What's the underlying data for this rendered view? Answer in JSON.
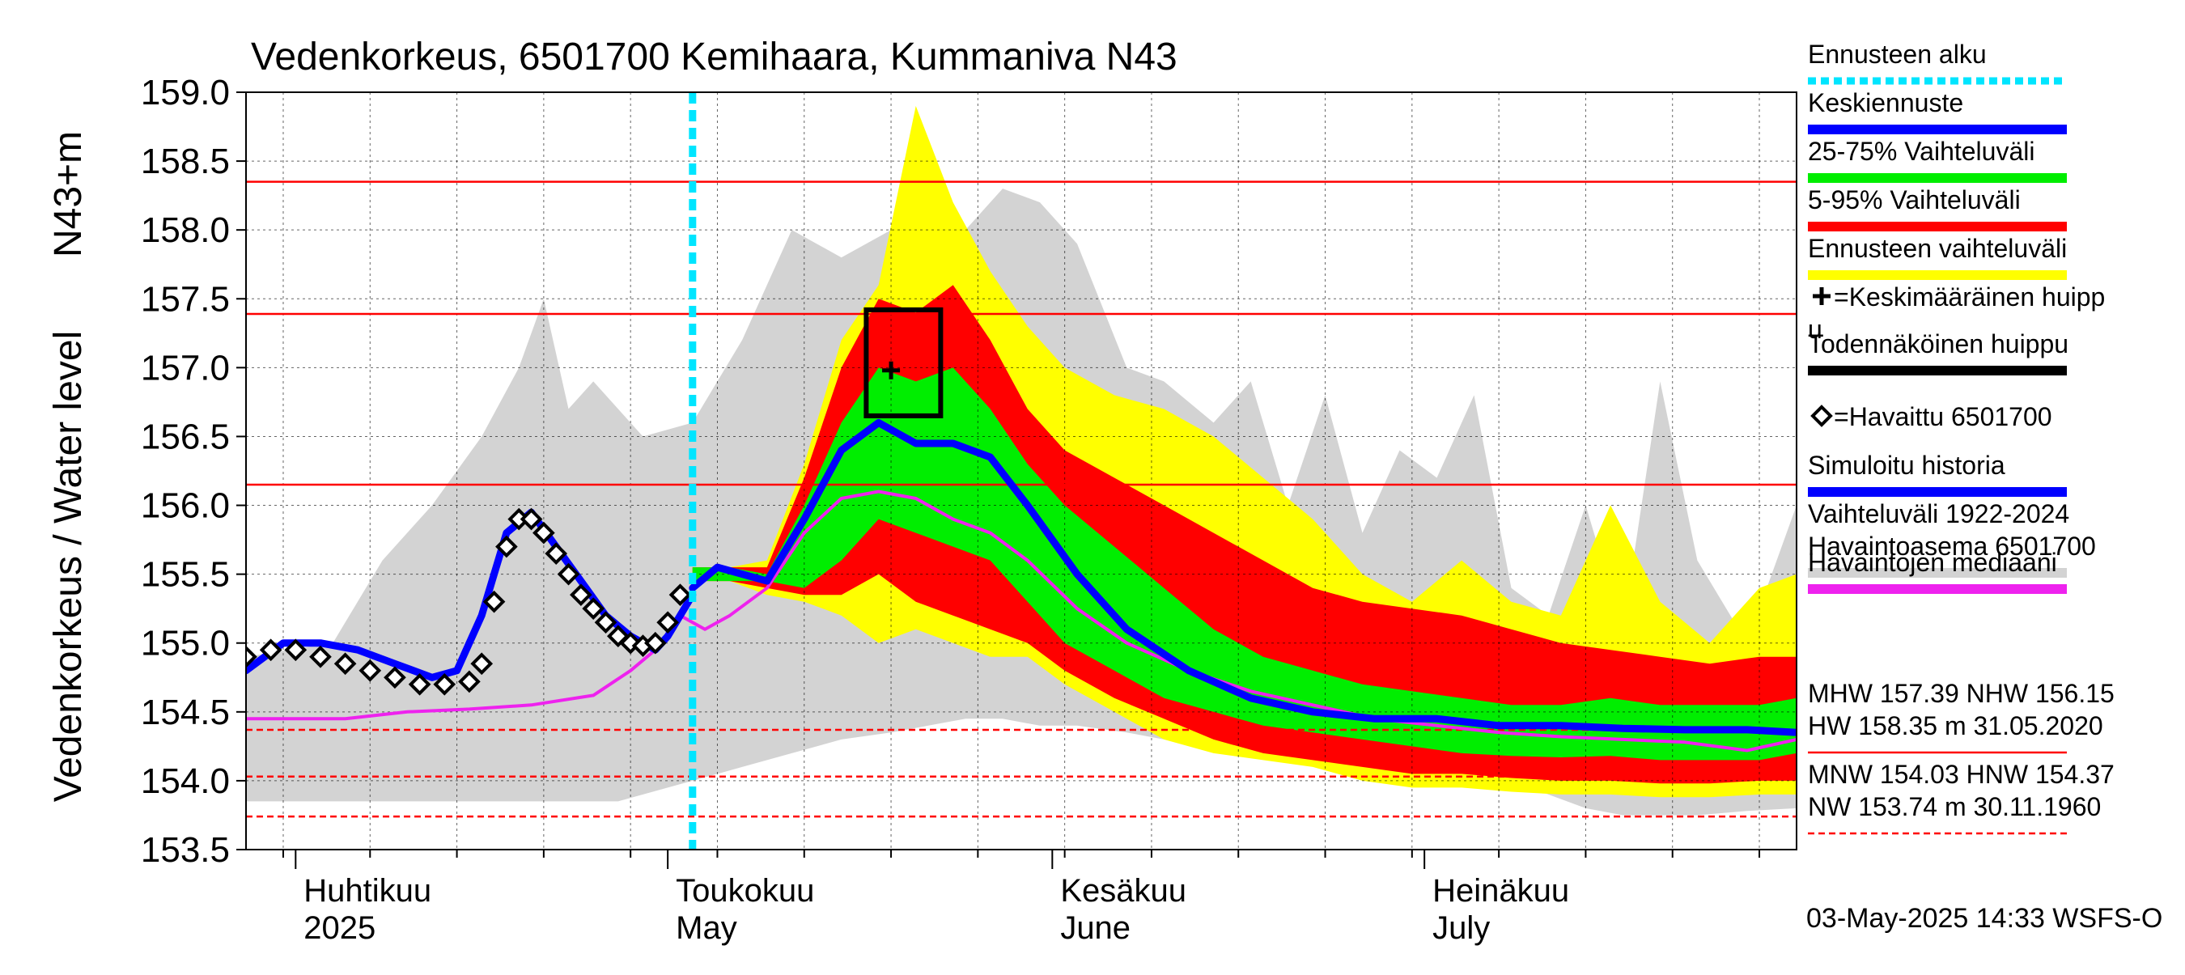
{
  "chart_data": {
    "type": "area",
    "title": "Vedenkorkeus, 6501700 Kemihaara, Kummaniva N43",
    "ylabel": "Vedenkorkeus / Water level",
    "yunit": "N43+m",
    "ylim": [
      153.5,
      159.0
    ],
    "yticks": [
      153.5,
      154.0,
      154.5,
      155.0,
      155.5,
      156.0,
      156.5,
      157.0,
      157.5,
      158.0,
      158.5,
      159.0
    ],
    "ytick_labels": [
      "153.5",
      "154.0",
      "154.5",
      "155.0",
      "155.5",
      "156.0",
      "156.5",
      "157.0",
      "157.5",
      "158.0",
      "158.5",
      "159.0"
    ],
    "xlim": [
      "2025-03-28",
      "2025-07-31"
    ],
    "x_month_labels": [
      {
        "date": "2025-04-01",
        "label": "Huhtikuu",
        "sub": "2025"
      },
      {
        "date": "2025-05-01",
        "label": "Toukokuu",
        "sub": "May"
      },
      {
        "date": "2025-06-01",
        "label": "Kesäkuu",
        "sub": "June"
      },
      {
        "date": "2025-07-01",
        "label": "Heinäkuu",
        "sub": "July"
      }
    ],
    "grid": true,
    "legend_position": "right",
    "forecast_start": "2025-05-03",
    "reference_levels": [
      {
        "name": "HW",
        "value": 158.35,
        "style": "solid"
      },
      {
        "name": "MHW",
        "value": 157.39,
        "style": "solid"
      },
      {
        "name": "NHW",
        "value": 156.15,
        "style": "solid"
      },
      {
        "name": "HNW",
        "value": 154.37,
        "style": "dashed"
      },
      {
        "name": "MNW",
        "value": 154.03,
        "style": "dashed"
      },
      {
        "name": "NW",
        "value": 153.74,
        "style": "dashed"
      }
    ],
    "peak_box": {
      "x0": "2025-05-17",
      "x1": "2025-05-23",
      "y0": 156.65,
      "y1": 157.42
    },
    "mean_peak": {
      "x": "2025-05-19",
      "y": 156.98
    },
    "series": [
      {
        "name": "Vaihteluväli 1922-2024 Havaintoasema 6501700",
        "kind": "band",
        "x": [
          "2025-03-28",
          "2025-04-04",
          "2025-04-08",
          "2025-04-12",
          "2025-04-16",
          "2025-04-19",
          "2025-04-21",
          "2025-04-23",
          "2025-04-25",
          "2025-04-27",
          "2025-04-29",
          "2025-05-03",
          "2025-05-07",
          "2025-05-11",
          "2025-05-15",
          "2025-05-19",
          "2025-05-22",
          "2025-05-25",
          "2025-05-28",
          "2025-05-31",
          "2025-06-03",
          "2025-06-07",
          "2025-06-10",
          "2025-06-14",
          "2025-06-17",
          "2025-06-20",
          "2025-06-23",
          "2025-06-26",
          "2025-06-29",
          "2025-07-02",
          "2025-07-05",
          "2025-07-08",
          "2025-07-11",
          "2025-07-14",
          "2025-07-17",
          "2025-07-20",
          "2025-07-23",
          "2025-07-27",
          "2025-07-31"
        ],
        "upper": [
          154.9,
          155.0,
          155.6,
          156.0,
          156.5,
          157.0,
          157.5,
          156.7,
          156.9,
          156.7,
          156.5,
          156.6,
          157.2,
          158.0,
          157.8,
          158.0,
          158.2,
          158.0,
          158.3,
          158.2,
          157.9,
          157.0,
          156.9,
          156.6,
          156.9,
          156.0,
          156.8,
          155.8,
          156.4,
          156.2,
          156.8,
          155.4,
          155.2,
          156.0,
          155.1,
          156.9,
          155.6,
          155.0,
          156.0
        ],
        "lower": [
          153.85,
          153.85,
          153.85,
          153.85,
          153.85,
          153.85,
          153.85,
          153.85,
          153.85,
          153.85,
          153.9,
          154.0,
          154.1,
          154.2,
          154.3,
          154.35,
          154.4,
          154.45,
          154.45,
          154.4,
          154.4,
          154.35,
          154.3,
          154.25,
          154.3,
          154.35,
          154.4,
          154.35,
          154.3,
          154.2,
          154.1,
          154.0,
          153.9,
          153.8,
          153.75,
          153.75,
          153.75,
          153.78,
          153.8
        ],
        "color": "#d3d3d3"
      },
      {
        "name": "Ennusteen vaihteluväli",
        "kind": "band",
        "x": [
          "2025-05-03",
          "2025-05-06",
          "2025-05-09",
          "2025-05-12",
          "2025-05-15",
          "2025-05-18",
          "2025-05-21",
          "2025-05-24",
          "2025-05-27",
          "2025-05-30",
          "2025-06-02",
          "2025-06-06",
          "2025-06-10",
          "2025-06-14",
          "2025-06-18",
          "2025-06-22",
          "2025-06-26",
          "2025-06-30",
          "2025-07-04",
          "2025-07-08",
          "2025-07-12",
          "2025-07-16",
          "2025-07-20",
          "2025-07-24",
          "2025-07-28",
          "2025-07-31"
        ],
        "upper": [
          155.55,
          155.55,
          155.6,
          156.3,
          157.2,
          157.6,
          158.9,
          158.2,
          157.7,
          157.3,
          157.0,
          156.8,
          156.7,
          156.5,
          156.2,
          155.9,
          155.5,
          155.3,
          155.6,
          155.3,
          155.2,
          156.0,
          155.3,
          155.0,
          155.4,
          155.5
        ],
        "lower": [
          155.45,
          155.45,
          155.35,
          155.3,
          155.2,
          155.0,
          155.1,
          155.0,
          154.9,
          154.9,
          154.7,
          154.5,
          154.3,
          154.2,
          154.15,
          154.1,
          154.0,
          153.95,
          153.95,
          153.92,
          153.9,
          153.9,
          153.88,
          153.88,
          153.9,
          153.9
        ],
        "color": "#ffff00"
      },
      {
        "name": "5-95% Vaihteluväli",
        "kind": "band",
        "x": [
          "2025-05-03",
          "2025-05-06",
          "2025-05-09",
          "2025-05-12",
          "2025-05-15",
          "2025-05-18",
          "2025-05-21",
          "2025-05-24",
          "2025-05-27",
          "2025-05-30",
          "2025-06-02",
          "2025-06-06",
          "2025-06-10",
          "2025-06-14",
          "2025-06-18",
          "2025-06-22",
          "2025-06-26",
          "2025-06-30",
          "2025-07-04",
          "2025-07-08",
          "2025-07-12",
          "2025-07-16",
          "2025-07-20",
          "2025-07-24",
          "2025-07-28",
          "2025-07-31"
        ],
        "upper": [
          155.55,
          155.55,
          155.55,
          156.2,
          157.0,
          157.5,
          157.4,
          157.6,
          157.2,
          156.7,
          156.4,
          156.2,
          156.0,
          155.8,
          155.6,
          155.4,
          155.3,
          155.25,
          155.2,
          155.1,
          155.0,
          154.95,
          154.9,
          154.85,
          154.9,
          154.9
        ],
        "lower": [
          155.45,
          155.45,
          155.4,
          155.35,
          155.35,
          155.5,
          155.3,
          155.2,
          155.1,
          155.0,
          154.8,
          154.6,
          154.45,
          154.3,
          154.2,
          154.15,
          154.1,
          154.05,
          154.05,
          154.02,
          154.0,
          154.0,
          153.98,
          153.98,
          154.0,
          154.0
        ],
        "color": "#ff0000"
      },
      {
        "name": "25-75% Vaihteluväli",
        "kind": "band",
        "x": [
          "2025-05-03",
          "2025-05-06",
          "2025-05-09",
          "2025-05-12",
          "2025-05-15",
          "2025-05-18",
          "2025-05-21",
          "2025-05-24",
          "2025-05-27",
          "2025-05-30",
          "2025-06-02",
          "2025-06-06",
          "2025-06-10",
          "2025-06-14",
          "2025-06-18",
          "2025-06-22",
          "2025-06-26",
          "2025-06-30",
          "2025-07-04",
          "2025-07-08",
          "2025-07-12",
          "2025-07-16",
          "2025-07-20",
          "2025-07-24",
          "2025-07-28",
          "2025-07-31"
        ],
        "upper": [
          155.55,
          155.55,
          155.5,
          156.0,
          156.6,
          157.0,
          156.9,
          157.0,
          156.7,
          156.3,
          156.0,
          155.7,
          155.4,
          155.1,
          154.9,
          154.8,
          154.7,
          154.65,
          154.6,
          154.55,
          154.55,
          154.6,
          154.55,
          154.55,
          154.55,
          154.6
        ],
        "lower": [
          155.45,
          155.45,
          155.45,
          155.4,
          155.6,
          155.9,
          155.8,
          155.7,
          155.6,
          155.3,
          155.0,
          154.8,
          154.6,
          154.5,
          154.4,
          154.35,
          154.3,
          154.25,
          154.2,
          154.18,
          154.17,
          154.18,
          154.15,
          154.15,
          154.15,
          154.2
        ],
        "color": "#00ee00"
      },
      {
        "name": "Havaintojen mediaani",
        "kind": "line",
        "x": [
          "2025-03-28",
          "2025-04-05",
          "2025-04-10",
          "2025-04-15",
          "2025-04-20",
          "2025-04-25",
          "2025-04-28",
          "2025-04-30",
          "2025-05-02",
          "2025-05-04",
          "2025-05-06",
          "2025-05-09",
          "2025-05-12",
          "2025-05-15",
          "2025-05-18",
          "2025-05-21",
          "2025-05-24",
          "2025-05-27",
          "2025-05-30",
          "2025-06-03",
          "2025-06-07",
          "2025-06-12",
          "2025-06-17",
          "2025-06-22",
          "2025-06-27",
          "2025-07-02",
          "2025-07-07",
          "2025-07-12",
          "2025-07-17",
          "2025-07-22",
          "2025-07-27",
          "2025-07-31"
        ],
        "y": [
          154.45,
          154.45,
          154.5,
          154.52,
          154.55,
          154.62,
          154.8,
          154.95,
          155.2,
          155.1,
          155.2,
          155.4,
          155.8,
          156.05,
          156.1,
          156.05,
          155.9,
          155.8,
          155.6,
          155.25,
          155.0,
          154.8,
          154.65,
          154.55,
          154.45,
          154.4,
          154.35,
          154.32,
          154.3,
          154.28,
          154.22,
          154.3
        ],
        "color": "#ee22ee"
      },
      {
        "name": "Simuloitu historia",
        "kind": "line",
        "x": [
          "2025-03-28",
          "2025-03-31",
          "2025-04-03",
          "2025-04-06",
          "2025-04-09",
          "2025-04-12",
          "2025-04-14",
          "2025-04-16",
          "2025-04-18",
          "2025-04-20",
          "2025-04-22",
          "2025-04-24",
          "2025-04-26",
          "2025-04-28",
          "2025-04-30",
          "2025-05-01",
          "2025-05-03"
        ],
        "y": [
          154.8,
          155.0,
          155.0,
          154.95,
          154.85,
          154.75,
          154.8,
          155.2,
          155.8,
          155.95,
          155.7,
          155.45,
          155.2,
          155.05,
          154.95,
          155.05,
          155.35
        ],
        "color": "#0000ff"
      },
      {
        "name": "Keskiennuste",
        "kind": "line",
        "x": [
          "2025-05-03",
          "2025-05-05",
          "2025-05-07",
          "2025-05-09",
          "2025-05-12",
          "2025-05-15",
          "2025-05-18",
          "2025-05-21",
          "2025-05-24",
          "2025-05-27",
          "2025-05-30",
          "2025-06-03",
          "2025-06-07",
          "2025-06-12",
          "2025-06-17",
          "2025-06-22",
          "2025-06-27",
          "2025-07-02",
          "2025-07-07",
          "2025-07-12",
          "2025-07-17",
          "2025-07-22",
          "2025-07-27",
          "2025-07-31"
        ],
        "y": [
          155.4,
          155.55,
          155.5,
          155.45,
          155.9,
          156.4,
          156.6,
          156.45,
          156.45,
          156.35,
          156.0,
          155.5,
          155.1,
          154.8,
          154.6,
          154.5,
          154.45,
          154.45,
          154.4,
          154.4,
          154.38,
          154.37,
          154.37,
          154.35
        ],
        "color": "#0000ff"
      },
      {
        "name": "Havaittu 6501700",
        "kind": "markers",
        "x": [
          "2025-03-28",
          "2025-03-30",
          "2025-04-01",
          "2025-04-03",
          "2025-04-05",
          "2025-04-07",
          "2025-04-09",
          "2025-04-11",
          "2025-04-13",
          "2025-04-15",
          "2025-04-16",
          "2025-04-17",
          "2025-04-18",
          "2025-04-19",
          "2025-04-20",
          "2025-04-21",
          "2025-04-22",
          "2025-04-23",
          "2025-04-24",
          "2025-04-25",
          "2025-04-26",
          "2025-04-27",
          "2025-04-28",
          "2025-04-29",
          "2025-04-30",
          "2025-05-01",
          "2025-05-02"
        ],
        "y": [
          154.9,
          154.95,
          154.95,
          154.9,
          154.85,
          154.8,
          154.75,
          154.7,
          154.7,
          154.72,
          154.85,
          155.3,
          155.7,
          155.9,
          155.9,
          155.8,
          155.65,
          155.5,
          155.35,
          155.25,
          155.15,
          155.05,
          155.0,
          154.98,
          155.0,
          155.15,
          155.35
        ],
        "color": "#000000"
      }
    ],
    "legend": [
      {
        "label": "Ennusteen alku",
        "kind": "dotted-line",
        "color": "#00e5ff"
      },
      {
        "label": "Keskiennuste",
        "kind": "line",
        "color": "#0000ff"
      },
      {
        "label": "25-75% Vaihteluväli",
        "kind": "line",
        "color": "#00ee00"
      },
      {
        "label": "5-95% Vaihteluväli",
        "kind": "line",
        "color": "#ff0000"
      },
      {
        "label": "Ennusteen vaihteluväli",
        "kind": "line",
        "color": "#ffff00"
      },
      {
        "label": "=Keskimääräinen huipp",
        "label2": "u",
        "kind": "plus-marker",
        "color": "#000000"
      },
      {
        "label": "Todennäköinen huippu",
        "kind": "line",
        "color": "#000000"
      },
      {
        "label": "=Havaittu 6501700",
        "kind": "diamond-marker",
        "color": "#000000"
      },
      {
        "label": "Simuloitu historia",
        "kind": "line",
        "color": "#0000ff"
      },
      {
        "label": "Vaihteluväli 1922-2024",
        "label2": " Havaintoasema 6501700",
        "kind": "line",
        "color": "#d3d3d3"
      },
      {
        "label": "Havaintojen mediaani",
        "kind": "line",
        "color": "#ee22ee"
      }
    ],
    "stats": [
      {
        "line1": "MHW 157.39 NHW 156.15",
        "line2": "HW 158.35 m 31.05.2020",
        "style": "solid"
      },
      {
        "line1": "MNW 154.03 HNW 154.37",
        "line2": "NW 153.74 m 30.11.1960",
        "style": "dashed"
      }
    ],
    "footer": "03-May-2025 14:33 WSFS-O"
  }
}
